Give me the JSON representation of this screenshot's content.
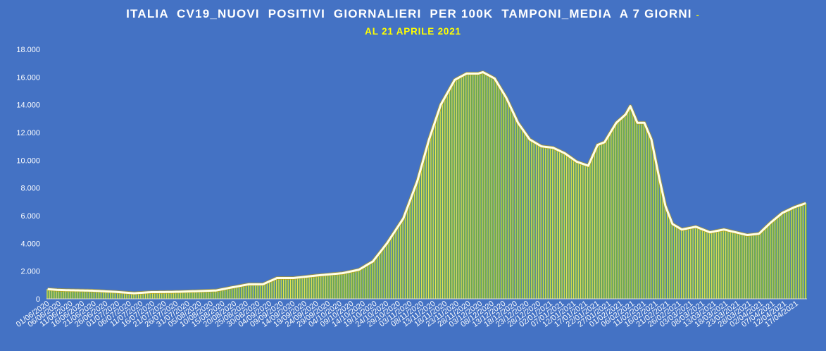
{
  "chart_data": {
    "type": "bar",
    "title": "ITALIA  CV19_NUOVI  POSITIVI  GIORNALIERI  PER 100K  TAMPONI_MEDIA  A 7 GIORNI",
    "title_suffix": "-",
    "subtitle": "AL 21 APRILE 2021",
    "ylim": [
      0,
      18000
    ],
    "yticks": [
      0,
      2000,
      4000,
      6000,
      8000,
      10000,
      12000,
      14000,
      16000,
      18000
    ],
    "ytick_labels": [
      "0",
      "2.000",
      "4.000",
      "6.000",
      "8.000",
      "10.000",
      "12.000",
      "14.000",
      "16.000",
      "18.000"
    ],
    "x_start": "2020-06-01",
    "x_end": "2021-04-21",
    "xtick_dates": [
      "01/06/2020",
      "06/06/2020",
      "11/06/2020",
      "16/06/2020",
      "21/06/2020",
      "26/06/2020",
      "01/07/2020",
      "06/07/2020",
      "11/07/2020",
      "16/07/2020",
      "21/07/2020",
      "26/07/2020",
      "31/07/2020",
      "05/08/2020",
      "10/08/2020",
      "15/08/2020",
      "20/08/2020",
      "25/08/2020",
      "30/08/2020",
      "04/09/2020",
      "09/09/2020",
      "14/09/2020",
      "19/09/2020",
      "24/09/2020",
      "29/09/2020",
      "04/10/2020",
      "09/10/2020",
      "14/10/2020",
      "19/10/2020",
      "24/10/2020",
      "29/10/2020",
      "03/11/2020",
      "08/11/2020",
      "13/11/2020",
      "18/11/2020",
      "23/11/2020",
      "28/11/2020",
      "03/12/2020",
      "08/12/2020",
      "13/12/2020",
      "18/12/2020",
      "23/12/2020",
      "28/12/2020",
      "02/01/2021",
      "07/01/2021",
      "12/01/2021",
      "17/01/2021",
      "22/01/2021",
      "27/01/2021",
      "01/02/2021",
      "06/02/2021",
      "11/02/2021",
      "16/02/2021",
      "21/02/2021",
      "26/02/2021",
      "03/03/2021",
      "08/03/2021",
      "13/03/2021",
      "18/03/2021",
      "23/03/2021",
      "28/03/2021",
      "02/04/2021",
      "07/04/2021",
      "12/04/2021",
      "17/04/2021"
    ],
    "series_keypoints": [
      [
        "2020-06-01",
        700
      ],
      [
        "2020-06-05",
        650
      ],
      [
        "2020-06-10",
        620
      ],
      [
        "2020-06-20",
        590
      ],
      [
        "2020-06-30",
        500
      ],
      [
        "2020-07-08",
        400
      ],
      [
        "2020-07-15",
        480
      ],
      [
        "2020-07-25",
        500
      ],
      [
        "2020-08-05",
        560
      ],
      [
        "2020-08-12",
        600
      ],
      [
        "2020-08-18",
        800
      ],
      [
        "2020-08-26",
        1050
      ],
      [
        "2020-09-01",
        1050
      ],
      [
        "2020-09-07",
        1500
      ],
      [
        "2020-09-14",
        1500
      ],
      [
        "2020-09-25",
        1700
      ],
      [
        "2020-10-05",
        1850
      ],
      [
        "2020-10-12",
        2100
      ],
      [
        "2020-10-18",
        2700
      ],
      [
        "2020-10-24",
        4000
      ],
      [
        "2020-10-31",
        5800
      ],
      [
        "2020-11-06",
        8500
      ],
      [
        "2020-11-11",
        11500
      ],
      [
        "2020-11-16",
        14000
      ],
      [
        "2020-11-22",
        15800
      ],
      [
        "2020-11-27",
        16250
      ],
      [
        "2020-12-02",
        16250
      ],
      [
        "2020-12-04",
        16350
      ],
      [
        "2020-12-09",
        15900
      ],
      [
        "2020-12-14",
        14500
      ],
      [
        "2020-12-19",
        12700
      ],
      [
        "2020-12-24",
        11500
      ],
      [
        "2020-12-29",
        11000
      ],
      [
        "2021-01-03",
        10900
      ],
      [
        "2021-01-08",
        10500
      ],
      [
        "2021-01-13",
        9900
      ],
      [
        "2021-01-18",
        9600
      ],
      [
        "2021-01-22",
        11100
      ],
      [
        "2021-01-25",
        11300
      ],
      [
        "2021-01-30",
        12700
      ],
      [
        "2021-02-03",
        13300
      ],
      [
        "2021-02-05",
        13900
      ],
      [
        "2021-02-08",
        12700
      ],
      [
        "2021-02-11",
        12700
      ],
      [
        "2021-02-14",
        11500
      ],
      [
        "2021-02-17",
        9000
      ],
      [
        "2021-02-20",
        6700
      ],
      [
        "2021-02-23",
        5400
      ],
      [
        "2021-02-27",
        5000
      ],
      [
        "2021-03-05",
        5200
      ],
      [
        "2021-03-11",
        4800
      ],
      [
        "2021-03-17",
        5000
      ],
      [
        "2021-03-22",
        4800
      ],
      [
        "2021-03-27",
        4600
      ],
      [
        "2021-04-01",
        4700
      ],
      [
        "2021-04-06",
        5500
      ],
      [
        "2021-04-11",
        6200
      ],
      [
        "2021-04-16",
        6600
      ],
      [
        "2021-04-21",
        6900
      ]
    ]
  }
}
